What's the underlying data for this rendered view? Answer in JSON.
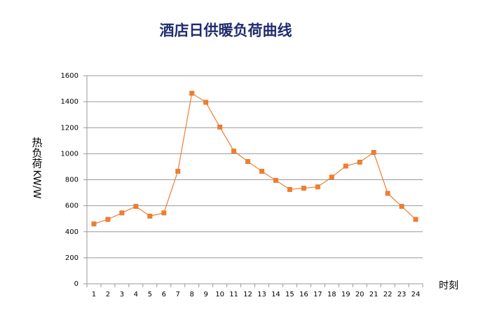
{
  "chart_data": {
    "type": "line",
    "title": "酒店日供暖负荷曲线",
    "y_label": "热负荷",
    "y_unit": "KW/W",
    "x_label": "时刻",
    "categories": [
      "1",
      "2",
      "3",
      "4",
      "5",
      "6",
      "7",
      "8",
      "9",
      "10",
      "11",
      "12",
      "13",
      "14",
      "15",
      "16",
      "17",
      "18",
      "19",
      "20",
      "21",
      "22",
      "23",
      "24"
    ],
    "values": [
      460,
      495,
      545,
      595,
      520,
      545,
      865,
      1465,
      1395,
      1205,
      1020,
      940,
      865,
      795,
      725,
      735,
      745,
      820,
      905,
      935,
      1010,
      695,
      595,
      495
    ],
    "color": "#ed7d31",
    "ylim": [
      0,
      1600
    ],
    "yticks": [
      0,
      200,
      400,
      600,
      800,
      1000,
      1200,
      1400,
      1600
    ],
    "grid": true
  }
}
